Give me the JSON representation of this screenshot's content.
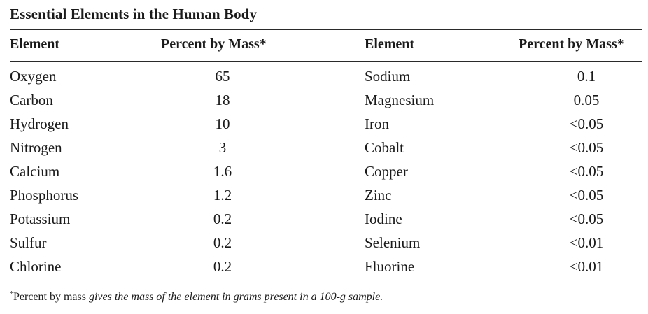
{
  "title": "Essential Elements in the Human Body",
  "headers": {
    "element_left": "Element",
    "percent_left": "Percent by Mass*",
    "element_right": "Element",
    "percent_right": "Percent by Mass*"
  },
  "rows": [
    {
      "left_element": "Oxygen",
      "left_value": "65",
      "right_element": "Sodium",
      "right_value": "0.1"
    },
    {
      "left_element": "Carbon",
      "left_value": "18",
      "right_element": "Magnesium",
      "right_value": "0.05"
    },
    {
      "left_element": "Hydrogen",
      "left_value": "10",
      "right_element": "Iron",
      "right_value": "<0.05"
    },
    {
      "left_element": "Nitrogen",
      "left_value": "3",
      "right_element": "Cobalt",
      "right_value": "<0.05"
    },
    {
      "left_element": "Calcium",
      "left_value": "1.6",
      "right_element": "Copper",
      "right_value": "<0.05"
    },
    {
      "left_element": "Phosphorus",
      "left_value": "1.2",
      "right_element": "Zinc",
      "right_value": "<0.05"
    },
    {
      "left_element": "Potassium",
      "left_value": "0.2",
      "right_element": "Iodine",
      "right_value": "<0.05"
    },
    {
      "left_element": "Sulfur",
      "left_value": "0.2",
      "right_element": "Selenium",
      "right_value": "<0.01"
    },
    {
      "left_element": "Chlorine",
      "left_value": "0.2",
      "right_element": "Fluorine",
      "right_value": "<0.01"
    }
  ],
  "footnote": {
    "marker": "*",
    "lead": "Percent by mass",
    "rest": " gives the mass of the element in grams present in a 100-g sample."
  }
}
